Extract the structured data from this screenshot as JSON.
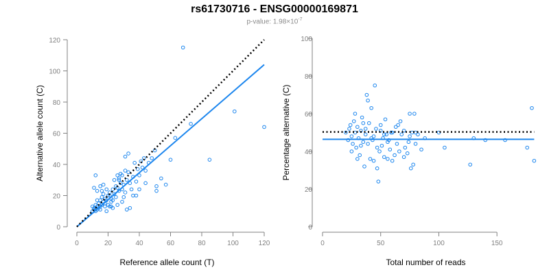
{
  "title": "rs61730716 - ENSG00000169871",
  "subtitle": {
    "label": "p-value:",
    "mantissa": "1.98×10",
    "exponent": "-7"
  },
  "colors": {
    "points": "#1c86ee",
    "fit": "#1c86ee",
    "reference": "#000000",
    "axis": "#808080"
  },
  "chart_data": [
    {
      "type": "scatter",
      "xlabel": "Reference allele count (T)",
      "ylabel": "Alternative allele count (C)",
      "xlim": [
        0,
        120
      ],
      "ylim": [
        0,
        120
      ],
      "xticks": [
        0,
        20,
        40,
        60,
        80,
        100,
        120
      ],
      "yticks": [
        0,
        20,
        40,
        60,
        80,
        100,
        120
      ],
      "grid": false,
      "points": [
        [
          10,
          10
        ],
        [
          10,
          13
        ],
        [
          11,
          11
        ],
        [
          11,
          12
        ],
        [
          12,
          10
        ],
        [
          12,
          12
        ],
        [
          12,
          14
        ],
        [
          13,
          11
        ],
        [
          13,
          13
        ],
        [
          14,
          12
        ],
        [
          14,
          15
        ],
        [
          15,
          13
        ],
        [
          15,
          17
        ],
        [
          16,
          14
        ],
        [
          16,
          19
        ],
        [
          17,
          16
        ],
        [
          18,
          13
        ],
        [
          18,
          15
        ],
        [
          18,
          18
        ],
        [
          19,
          17
        ],
        [
          20,
          20
        ],
        [
          20,
          14
        ],
        [
          21,
          13
        ],
        [
          21,
          22
        ],
        [
          22,
          16
        ],
        [
          22,
          18
        ],
        [
          23,
          24
        ],
        [
          24,
          21
        ],
        [
          25,
          19
        ],
        [
          25,
          26
        ],
        [
          26,
          25
        ],
        [
          27,
          23
        ],
        [
          27,
          30
        ],
        [
          28,
          28
        ],
        [
          29,
          24
        ],
        [
          29,
          33
        ],
        [
          30,
          19
        ],
        [
          30,
          27
        ],
        [
          31,
          22
        ],
        [
          32,
          30
        ],
        [
          33,
          35
        ],
        [
          34,
          28
        ],
        [
          35,
          24
        ],
        [
          36,
          32
        ],
        [
          37,
          41
        ],
        [
          38,
          29
        ],
        [
          39,
          37
        ],
        [
          40,
          33
        ],
        [
          41,
          42
        ],
        [
          42,
          38
        ],
        [
          43,
          44
        ],
        [
          44,
          36
        ],
        [
          46,
          41
        ],
        [
          48,
          44
        ],
        [
          50,
          49
        ],
        [
          51,
          23
        ],
        [
          51,
          26
        ],
        [
          54,
          31
        ],
        [
          57,
          27
        ],
        [
          60,
          43
        ],
        [
          63,
          57
        ],
        [
          68,
          115
        ],
        [
          73,
          66
        ],
        [
          85,
          43
        ],
        [
          101,
          74
        ],
        [
          120,
          64
        ],
        [
          11,
          25
        ],
        [
          12,
          33
        ],
        [
          13,
          23
        ],
        [
          15,
          26
        ],
        [
          17,
          21
        ],
        [
          19,
          24
        ],
        [
          21,
          20
        ],
        [
          23,
          17
        ],
        [
          24,
          30
        ],
        [
          26,
          33
        ],
        [
          28,
          34
        ],
        [
          31,
          36
        ],
        [
          33,
          47
        ],
        [
          36,
          20
        ],
        [
          38,
          20
        ],
        [
          40,
          24
        ],
        [
          44,
          28
        ],
        [
          15,
          11
        ],
        [
          19,
          10
        ],
        [
          23,
          12
        ],
        [
          26,
          14
        ],
        [
          29,
          16
        ],
        [
          32,
          11
        ],
        [
          17,
          27
        ],
        [
          34,
          12
        ],
        [
          31,
          45
        ],
        [
          22,
          13
        ],
        [
          13,
          17
        ],
        [
          16,
          23
        ],
        [
          27,
          31
        ]
      ],
      "fit_line": {
        "x": [
          0,
          120
        ],
        "y": [
          0,
          104
        ]
      },
      "reference_line": {
        "x": [
          0,
          120
        ],
        "y": [
          0,
          120
        ]
      }
    },
    {
      "type": "scatter",
      "xlabel": "Total number of reads",
      "ylabel": "Percentage alternative (C)",
      "xlim": [
        0,
        180
      ],
      "ylim": [
        0,
        100
      ],
      "xticks": [
        0,
        50,
        100,
        150
      ],
      "yticks": [
        0,
        20,
        40,
        60,
        80,
        100
      ],
      "grid": false,
      "points": [
        [
          20,
          50
        ],
        [
          22,
          46
        ],
        [
          23,
          52
        ],
        [
          24,
          54
        ],
        [
          25,
          48
        ],
        [
          26,
          44
        ],
        [
          27,
          56
        ],
        [
          28,
          50
        ],
        [
          29,
          42
        ],
        [
          30,
          53
        ],
        [
          31,
          47
        ],
        [
          32,
          38
        ],
        [
          33,
          51
        ],
        [
          34,
          58
        ],
        [
          35,
          45
        ],
        [
          36,
          32
        ],
        [
          37,
          49
        ],
        [
          38,
          70
        ],
        [
          39,
          67
        ],
        [
          40,
          55
        ],
        [
          41,
          36
        ],
        [
          42,
          63
        ],
        [
          43,
          46
        ],
        [
          44,
          48
        ],
        [
          45,
          75
        ],
        [
          46,
          52
        ],
        [
          47,
          31
        ],
        [
          48,
          24
        ],
        [
          49,
          40
        ],
        [
          50,
          54
        ],
        [
          51,
          43
        ],
        [
          52,
          47
        ],
        [
          53,
          37
        ],
        [
          54,
          57
        ],
        [
          55,
          49
        ],
        [
          56,
          36
        ],
        [
          57,
          46
        ],
        [
          58,
          41
        ],
        [
          59,
          50
        ],
        [
          60,
          35
        ],
        [
          62,
          38
        ],
        [
          63,
          53
        ],
        [
          64,
          44
        ],
        [
          66,
          40
        ],
        [
          67,
          56
        ],
        [
          68,
          49
        ],
        [
          70,
          51
        ],
        [
          71,
          42
        ],
        [
          73,
          39
        ],
        [
          74,
          45
        ],
        [
          75,
          60
        ],
        [
          76,
          31
        ],
        [
          77,
          50
        ],
        [
          78,
          33
        ],
        [
          79,
          60
        ],
        [
          80,
          44
        ],
        [
          82,
          49
        ],
        [
          85,
          41
        ],
        [
          88,
          47
        ],
        [
          100,
          50
        ],
        [
          105,
          42
        ],
        [
          127,
          33
        ],
        [
          130,
          47
        ],
        [
          140,
          46
        ],
        [
          157,
          46
        ],
        [
          176,
          42
        ],
        [
          180,
          63
        ],
        [
          182,
          35
        ],
        [
          25,
          40
        ],
        [
          28,
          60
        ],
        [
          30,
          36
        ],
        [
          33,
          43
        ],
        [
          35,
          55
        ],
        [
          37,
          52
        ],
        [
          39,
          44
        ],
        [
          42,
          47
        ],
        [
          44,
          35
        ],
        [
          47,
          42
        ],
        [
          50,
          51
        ],
        [
          53,
          49
        ],
        [
          56,
          45
        ],
        [
          60,
          50
        ],
        [
          65,
          54
        ],
        [
          70,
          37
        ],
        [
          75,
          48
        ],
        [
          80,
          50
        ]
      ],
      "fit_line": {
        "x": [
          0,
          182
        ],
        "y": [
          46.4,
          46.4
        ]
      },
      "reference_line": {
        "x": [
          0,
          182
        ],
        "y": [
          50.3,
          50.3
        ]
      }
    }
  ]
}
